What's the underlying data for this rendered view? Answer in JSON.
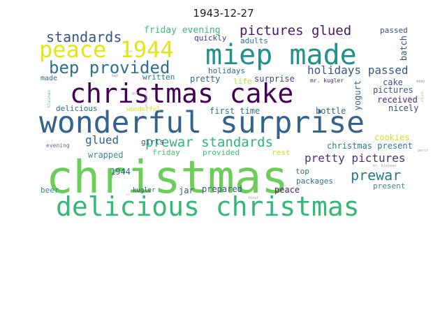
{
  "title": "1943-12-27",
  "wordcloud": {
    "words": [
      {
        "text": "christmas",
        "color": "#6ccd5a"
      },
      {
        "text": "wonderful surprise",
        "color": "#33638d"
      },
      {
        "text": "delicious christmas",
        "color": "#35b779"
      },
      {
        "text": "christmas cake",
        "color": "#440154"
      },
      {
        "text": "miep made",
        "color": "#21918c"
      },
      {
        "text": "peace 1944",
        "color": "#e5e419"
      },
      {
        "text": "bep provided",
        "color": "#2c728e"
      },
      {
        "text": "prewar standards",
        "color": "#2fb47c"
      },
      {
        "text": "pictures glued",
        "color": "#481769"
      },
      {
        "text": "standards",
        "color": "#3b528b"
      },
      {
        "text": "holidays passed",
        "color": "#39568c"
      },
      {
        "text": "pretty pictures",
        "color": "#46327e"
      },
      {
        "text": "prewar",
        "color": "#2a788e"
      },
      {
        "text": "glued",
        "color": "#32648e"
      },
      {
        "text": "friday evening",
        "color": "#3dbc74"
      },
      {
        "text": "quickly",
        "color": "#443983"
      },
      {
        "text": "adults",
        "color": "#2a778e"
      },
      {
        "text": "passed",
        "color": "#3e4a89"
      },
      {
        "text": "batch",
        "color": "#3b528b"
      },
      {
        "text": "yogurt",
        "color": "#306a8e"
      },
      {
        "text": "holidays",
        "color": "#2f6c8e"
      },
      {
        "text": "pretty",
        "color": "#32648e"
      },
      {
        "text": "life",
        "color": "#b5de2b"
      },
      {
        "text": "surprise",
        "color": "#3f4788"
      },
      {
        "text": "mr. kugler",
        "color": "#482475"
      },
      {
        "text": "cake",
        "color": "#3b528b"
      },
      {
        "text": "written",
        "color": "#2a788e"
      },
      {
        "text": "made",
        "color": "#31688e"
      },
      {
        "text": "delicious",
        "color": "#2e6e8e"
      },
      {
        "text": "wonderful",
        "color": "#d8e219"
      },
      {
        "text": "first time",
        "color": "#2a788e"
      },
      {
        "text": "bottle",
        "color": "#31688e"
      },
      {
        "text": "pictures",
        "color": "#39568c"
      },
      {
        "text": "received",
        "color": "#472d7b"
      },
      {
        "text": "nicely",
        "color": "#3f4788"
      },
      {
        "text": "cookies",
        "color": "#d2e21b"
      },
      {
        "text": "christmas present",
        "color": "#277f8e"
      },
      {
        "text": "evening",
        "color": "#5c6c8e"
      },
      {
        "text": "girls",
        "color": "#3e4a89"
      },
      {
        "text": "wrapped",
        "color": "#3b8d8c"
      },
      {
        "text": "friday",
        "color": "#4ac16d"
      },
      {
        "text": "provided",
        "color": "#3dbc74"
      },
      {
        "text": "rest",
        "color": "#cde11d"
      },
      {
        "text": "1944",
        "color": "#31688e"
      },
      {
        "text": "top",
        "color": "#2d708e"
      },
      {
        "text": "packages",
        "color": "#2d708e"
      },
      {
        "text": "beer",
        "color": "#3e8a8c"
      },
      {
        "text": "kugler",
        "color": "#3f4788"
      },
      {
        "text": "jar",
        "color": "#3b528b"
      },
      {
        "text": "prepared",
        "color": "#39568c"
      },
      {
        "text": "peace",
        "color": "#481c6e"
      },
      {
        "text": "present",
        "color": "#3e8a8c"
      },
      {
        "text": "mr. kleiman",
        "color": "#9aa4b8"
      },
      {
        "text": "kleiman",
        "color": "#7fb3ad"
      },
      {
        "text": "bep",
        "color": "#8390b0"
      },
      {
        "text": "miep",
        "color": "#8390b0"
      },
      {
        "text": "girl",
        "color": "#9aa4b8"
      },
      {
        "text": "first",
        "color": "#9a88b5"
      },
      {
        "text": "gerst",
        "color": "#a0a0b8"
      },
      {
        "text": "stuck",
        "color": "#a0a8c0"
      },
      {
        "text": "wrapping",
        "color": "#a0c8a8"
      },
      {
        "text": "glue",
        "color": "#c0c8d0"
      },
      {
        "text": "us",
        "color": "#c0c8d0"
      }
    ]
  }
}
